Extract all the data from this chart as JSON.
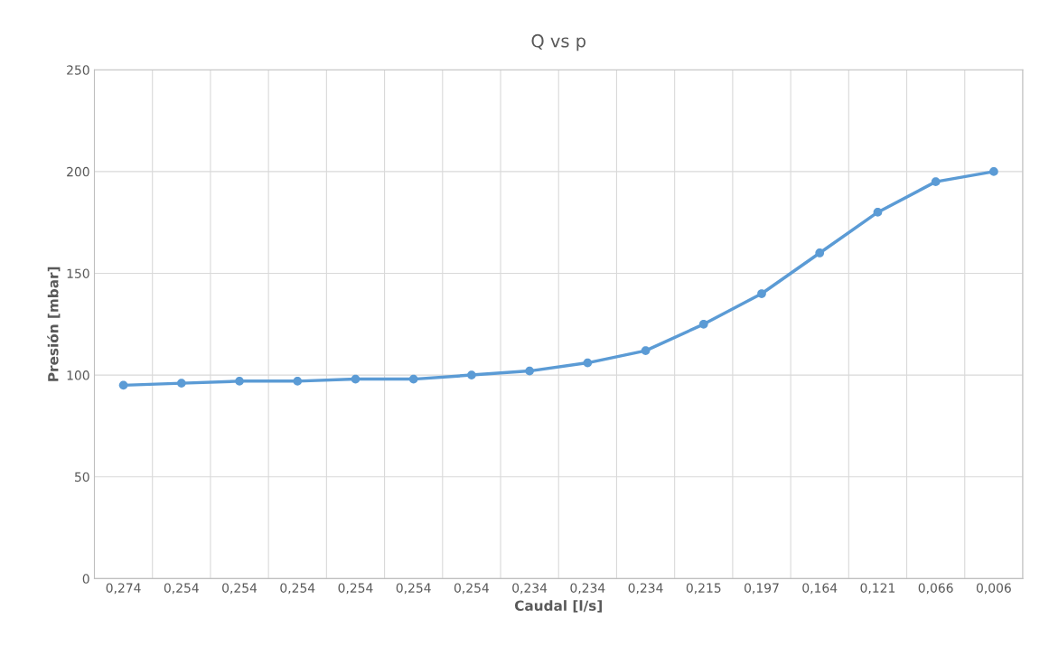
{
  "chart_data": {
    "type": "line",
    "title": "Q vs p",
    "xlabel": "Caudal [l/s]",
    "ylabel": "Presión [mbar]",
    "categories": [
      "0,274",
      "0,254",
      "0,254",
      "0,254",
      "0,254",
      "0,254",
      "0,254",
      "0,234",
      "0,234",
      "0,234",
      "0,215",
      "0,197",
      "0,164",
      "0,121",
      "0,066",
      "0,006"
    ],
    "series": [
      {
        "color": "#5b9bd5",
        "values": [
          95,
          96,
          97,
          97,
          98,
          98,
          100,
          102,
          106,
          112,
          125,
          140,
          160,
          180,
          195,
          200
        ]
      }
    ],
    "ylim": [
      0,
      250
    ],
    "yticks": [
      0,
      50,
      100,
      150,
      200,
      250
    ],
    "grid": true,
    "marker": "circle",
    "line_style": "solid"
  }
}
